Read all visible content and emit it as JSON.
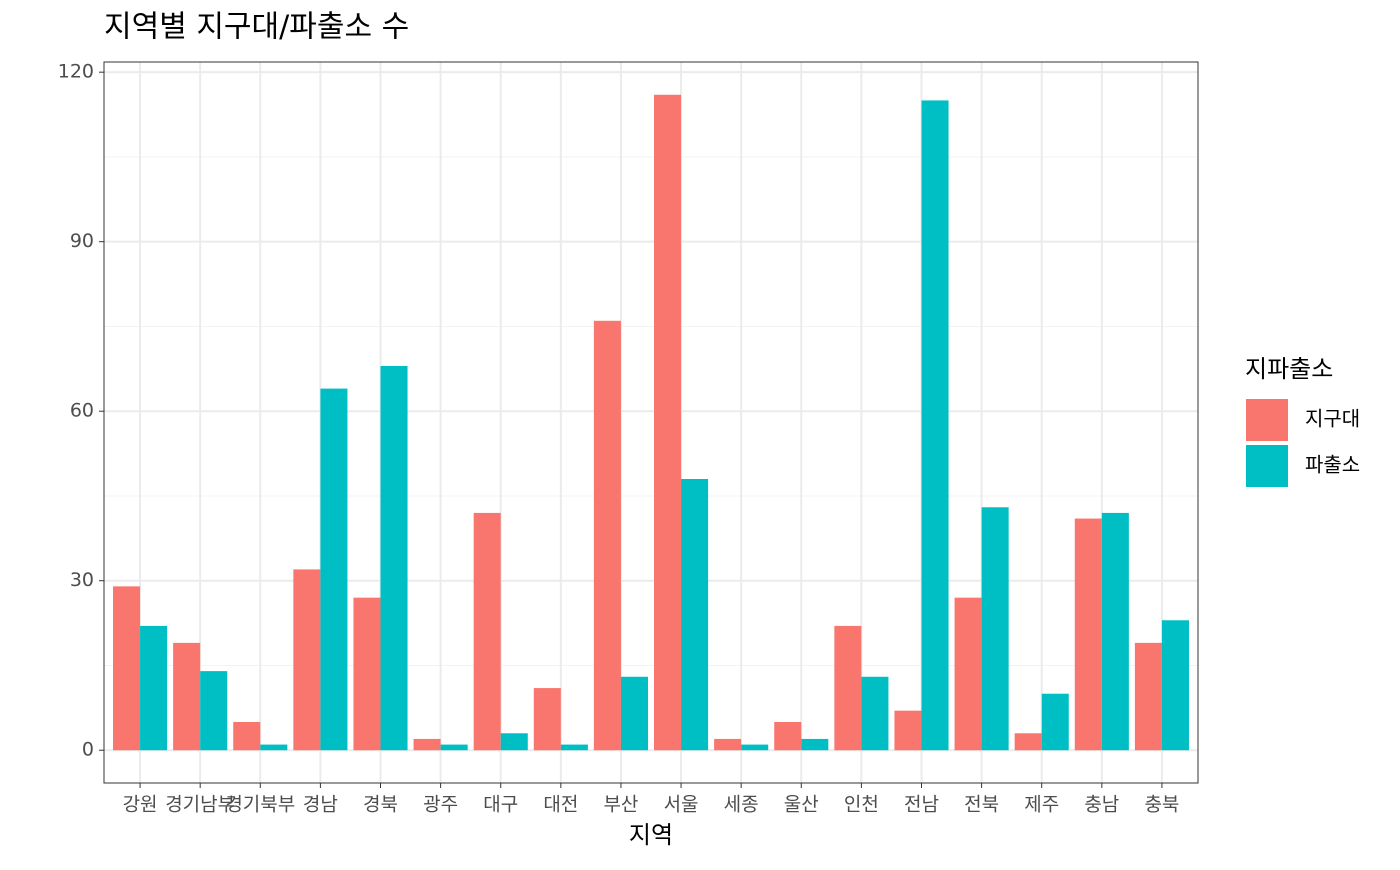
{
  "chart_data": {
    "type": "bar",
    "title": "지역별 지구대/파출소 수",
    "x_label": "지역",
    "legend_title": "지파출소",
    "categories": [
      "강원",
      "경기남부",
      "경기북부",
      "경남",
      "경북",
      "광주",
      "대구",
      "대전",
      "부산",
      "서울",
      "세종",
      "울산",
      "인천",
      "전남",
      "전북",
      "제주",
      "충남",
      "충북"
    ],
    "series": [
      {
        "name": "지구대",
        "color": "#f8766d",
        "values": [
          29,
          19,
          5,
          32,
          27,
          2,
          42,
          11,
          76,
          116,
          2,
          5,
          22,
          7,
          27,
          3,
          41,
          19
        ]
      },
      {
        "name": "파출소",
        "color": "#00bfc4",
        "values": [
          22,
          14,
          1,
          64,
          68,
          1,
          3,
          1,
          13,
          48,
          1,
          2,
          13,
          115,
          43,
          10,
          42,
          23
        ]
      }
    ],
    "ylim": [
      -5.8,
      121.8
    ],
    "yticks": [
      0,
      30,
      60,
      90,
      120
    ],
    "grid": true,
    "legend": "right"
  }
}
